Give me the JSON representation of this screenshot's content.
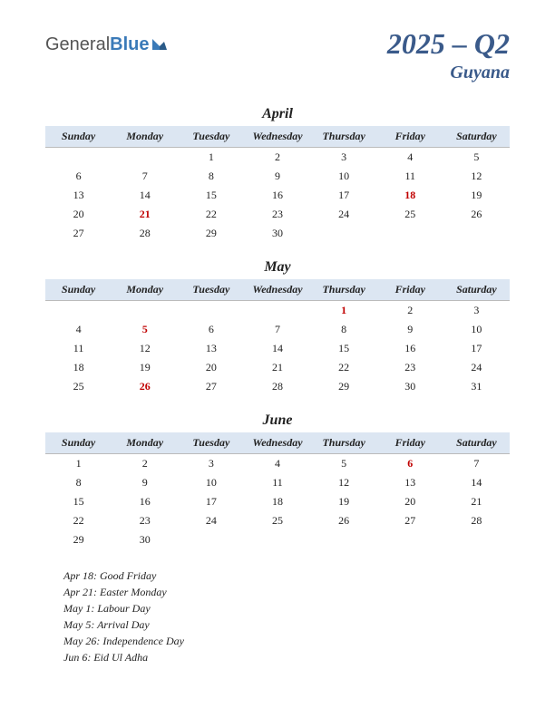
{
  "logo": {
    "general": "General",
    "blue": "Blue"
  },
  "title": {
    "main": "2025 – Q2",
    "sub": "Guyana"
  },
  "dayHeaders": [
    "Sunday",
    "Monday",
    "Tuesday",
    "Wednesday",
    "Thursday",
    "Friday",
    "Saturday"
  ],
  "months": [
    {
      "name": "April",
      "weeks": [
        [
          "",
          "",
          "1",
          "2",
          "3",
          "4",
          "5"
        ],
        [
          "6",
          "7",
          "8",
          "9",
          "10",
          "11",
          "12"
        ],
        [
          "13",
          "14",
          "15",
          "16",
          "17",
          "18",
          "19"
        ],
        [
          "20",
          "21",
          "22",
          "23",
          "24",
          "25",
          "26"
        ],
        [
          "27",
          "28",
          "29",
          "30",
          "",
          "",
          ""
        ]
      ],
      "holidays": [
        "18",
        "21"
      ]
    },
    {
      "name": "May",
      "weeks": [
        [
          "",
          "",
          "",
          "",
          "1",
          "2",
          "3"
        ],
        [
          "4",
          "5",
          "6",
          "7",
          "8",
          "9",
          "10"
        ],
        [
          "11",
          "12",
          "13",
          "14",
          "15",
          "16",
          "17"
        ],
        [
          "18",
          "19",
          "20",
          "21",
          "22",
          "23",
          "24"
        ],
        [
          "25",
          "26",
          "27",
          "28",
          "29",
          "30",
          "31"
        ]
      ],
      "holidays": [
        "1",
        "5",
        "26"
      ]
    },
    {
      "name": "June",
      "weeks": [
        [
          "1",
          "2",
          "3",
          "4",
          "5",
          "6",
          "7"
        ],
        [
          "8",
          "9",
          "10",
          "11",
          "12",
          "13",
          "14"
        ],
        [
          "15",
          "16",
          "17",
          "18",
          "19",
          "20",
          "21"
        ],
        [
          "22",
          "23",
          "24",
          "25",
          "26",
          "27",
          "28"
        ],
        [
          "29",
          "30",
          "",
          "",
          "",
          "",
          ""
        ]
      ],
      "holidays": [
        "6"
      ]
    }
  ],
  "holidayList": [
    "Apr 18: Good Friday",
    "Apr 21: Easter Monday",
    "May 1: Labour Day",
    "May 5: Arrival Day",
    "May 26: Independence Day",
    "Jun 6: Eid Ul Adha"
  ],
  "colors": {
    "headerBg": "#dce6f2",
    "titleColor": "#3a5a8a",
    "holidayColor": "#c00000"
  }
}
